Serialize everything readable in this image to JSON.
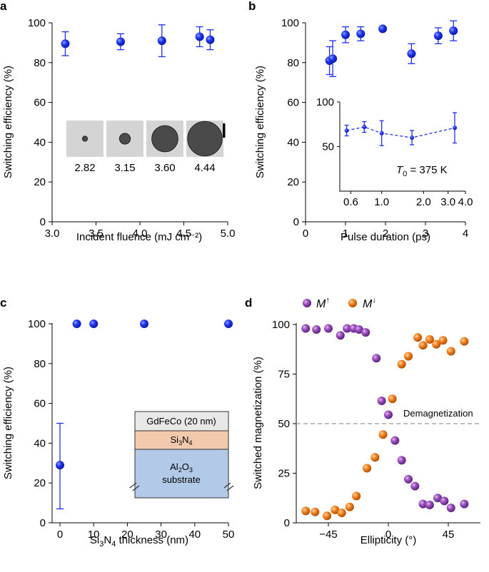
{
  "colors": {
    "blue_fill": "#1f2ff0",
    "blue_line": "#1f2ff0",
    "purple": "#8e44ad",
    "orange": "#f07b1c",
    "gray_line": "#999999",
    "layer_gdfeco": "#e8e8e8",
    "layer_si3n4": "#f2c9ad",
    "layer_al2o3": "#b3c9e8"
  },
  "chart_data": [
    {
      "panel": "a",
      "type": "scatter",
      "xlabel": "Incident fluence (mJ cm⁻²)",
      "ylabel": "Switching efficiency (%)",
      "xlim": [
        3.0,
        5.0
      ],
      "ylim": [
        0,
        100
      ],
      "xticks": [
        "3.0",
        "3.5",
        "4.0",
        "4.5",
        "5.0"
      ],
      "yticks": [
        "0",
        "20",
        "40",
        "60",
        "80",
        "100"
      ],
      "points": [
        {
          "x": 3.15,
          "y": 89.5,
          "err_lo": 6,
          "err_hi": 6
        },
        {
          "x": 3.78,
          "y": 90.5,
          "err_lo": 4,
          "err_hi": 4
        },
        {
          "x": 4.25,
          "y": 91,
          "err_lo": 8,
          "err_hi": 8
        },
        {
          "x": 4.68,
          "y": 93,
          "err_lo": 5,
          "err_hi": 5
        },
        {
          "x": 4.8,
          "y": 91.5,
          "err_lo": 5,
          "err_hi": 5
        }
      ],
      "inset_labels": [
        "2.82",
        "3.15",
        "3.60",
        "4.44"
      ],
      "inset_spot_sizes": [
        0.14,
        0.3,
        0.72,
        0.95
      ]
    },
    {
      "panel": "b",
      "type": "scatter",
      "xlabel": "Pulse duration (ps)",
      "ylabel": "Switching efficiency (%)",
      "xlim": [
        0,
        4
      ],
      "ylim": [
        0,
        100
      ],
      "xticks": [
        "0",
        "1",
        "2",
        "3",
        "4"
      ],
      "yticks": [
        "0",
        "20",
        "40",
        "60",
        "80",
        "100"
      ],
      "points": [
        {
          "x": 0.6,
          "y": 81,
          "err_lo": 7,
          "err_hi": 7
        },
        {
          "x": 0.68,
          "y": 82,
          "err_lo": 9,
          "err_hi": 9
        },
        {
          "x": 1.0,
          "y": 94,
          "err_lo": 4,
          "err_hi": 4
        },
        {
          "x": 1.38,
          "y": 94.5,
          "err_lo": 3.5,
          "err_hi": 3.5
        },
        {
          "x": 1.93,
          "y": 97,
          "err_lo": 0,
          "err_hi": 0
        },
        {
          "x": 2.65,
          "y": 84.5,
          "err_lo": 5,
          "err_hi": 5
        },
        {
          "x": 3.32,
          "y": 93.5,
          "err_lo": 4,
          "err_hi": 4
        },
        {
          "x": 3.7,
          "y": 96,
          "err_lo": 5,
          "err_hi": 5
        }
      ],
      "inset": {
        "annotation_T": "T",
        "annotation_sub": "0",
        "annotation_rest": " = 375 K",
        "xscale": "log",
        "xlim": [
          0.5,
          4.0
        ],
        "ylim": [
          0,
          100
        ],
        "xticks": [
          {
            "v": 0.6,
            "label": "0.6"
          },
          {
            "v": 1.0,
            "label": "1.0"
          },
          {
            "v": 2.0,
            "label": "2.0"
          },
          {
            "v": 3.0,
            "label": "3.0"
          },
          {
            "v": 4.0,
            "label": "4.0"
          }
        ],
        "yticks": [
          "50",
          "100"
        ],
        "points": [
          {
            "x": 0.56,
            "y": 68,
            "err_lo": 6,
            "err_hi": 6
          },
          {
            "x": 0.75,
            "y": 72,
            "err_lo": 6,
            "err_hi": 6
          },
          {
            "x": 1.0,
            "y": 65,
            "err_lo": 14,
            "err_hi": 14
          },
          {
            "x": 1.65,
            "y": 60,
            "err_lo": 8,
            "err_hi": 8
          },
          {
            "x": 3.35,
            "y": 71,
            "err_lo": 17,
            "err_hi": 17
          }
        ]
      }
    },
    {
      "panel": "c",
      "type": "scatter",
      "xlabel_main": "Si",
      "xlabel_sub1": "3",
      "xlabel_mid": "N",
      "xlabel_sub2": "4",
      "xlabel_rest": " thickness (nm)",
      "ylabel": "Switching efficiency (%)",
      "xlim": [
        0,
        50
      ],
      "ylim": [
        0,
        100
      ],
      "xticks": [
        "0",
        "10",
        "20",
        "30",
        "40",
        "50"
      ],
      "yticks": [
        "0",
        "20",
        "40",
        "60",
        "80",
        "100"
      ],
      "points": [
        {
          "x": 0,
          "y": 29,
          "err_lo": 22,
          "err_hi": 21
        },
        {
          "x": 5,
          "y": 100,
          "err_lo": 0,
          "err_hi": 0
        },
        {
          "x": 10,
          "y": 100,
          "err_lo": 0,
          "err_hi": 0
        },
        {
          "x": 25,
          "y": 100,
          "err_lo": 0,
          "err_hi": 0
        },
        {
          "x": 50,
          "y": 100,
          "err_lo": 0,
          "err_hi": 0
        }
      ],
      "stack": {
        "top": "GdFeCo (20 nm)",
        "mid_a": "Si",
        "mid_sub1": "3",
        "mid_b": "N",
        "mid_sub2": "4",
        "bot_a": "Al",
        "bot_sub1": "2",
        "bot_b": "O",
        "bot_sub2": "3",
        "bot_line2": "substrate"
      }
    },
    {
      "panel": "d",
      "type": "scatter",
      "xlabel": "Ellipticity (°)",
      "ylabel": "Switched magnetization (%)",
      "xlim": [
        -65,
        65
      ],
      "ylim": [
        0,
        100
      ],
      "xticks": [
        {
          "v": -45,
          "label": "−45"
        },
        {
          "v": 0,
          "label": "0"
        },
        {
          "v": 45,
          "label": "45"
        }
      ],
      "yticks": [
        "0",
        "25",
        "50",
        "75",
        "100"
      ],
      "reference_line": {
        "y": 50,
        "label": "Demagnetization"
      },
      "legend": [
        {
          "name": "M",
          "sup": "↑"
        },
        {
          "name": "M",
          "sup": "↓"
        }
      ],
      "series": [
        {
          "name": "M up",
          "points": [
            {
              "x": -62,
              "y": 98
            },
            {
              "x": -54,
              "y": 97.5
            },
            {
              "x": -45,
              "y": 98
            },
            {
              "x": -36,
              "y": 94.5
            },
            {
              "x": -31,
              "y": 98
            },
            {
              "x": -26,
              "y": 98
            },
            {
              "x": -22,
              "y": 97.5
            },
            {
              "x": -17,
              "y": 96
            },
            {
              "x": -9,
              "y": 83
            },
            {
              "x": -5,
              "y": 61.5
            },
            {
              "x": 0,
              "y": 54.5
            },
            {
              "x": 5,
              "y": 41.5
            },
            {
              "x": 10,
              "y": 31.5
            },
            {
              "x": 15,
              "y": 22
            },
            {
              "x": 20,
              "y": 18.5
            },
            {
              "x": 26,
              "y": 9.5
            },
            {
              "x": 31,
              "y": 9
            },
            {
              "x": 37,
              "y": 12.5
            },
            {
              "x": 42,
              "y": 11
            },
            {
              "x": 47,
              "y": 7.5
            },
            {
              "x": 57,
              "y": 9.5
            }
          ]
        },
        {
          "name": "M down",
          "points": [
            {
              "x": -62,
              "y": 6
            },
            {
              "x": -55,
              "y": 5.5
            },
            {
              "x": -46,
              "y": 3.5
            },
            {
              "x": -40,
              "y": 6.5
            },
            {
              "x": -35,
              "y": 5
            },
            {
              "x": -29,
              "y": 8
            },
            {
              "x": -24,
              "y": 13.5
            },
            {
              "x": -16,
              "y": 27.5
            },
            {
              "x": -10,
              "y": 33
            },
            {
              "x": -4,
              "y": 44.5
            },
            {
              "x": 3,
              "y": 62.5
            },
            {
              "x": 10,
              "y": 80
            },
            {
              "x": 15,
              "y": 84
            },
            {
              "x": 22,
              "y": 93.5
            },
            {
              "x": 26,
              "y": 89.5
            },
            {
              "x": 31,
              "y": 92.5
            },
            {
              "x": 36,
              "y": 90
            },
            {
              "x": 41,
              "y": 92
            },
            {
              "x": 47,
              "y": 86.5
            },
            {
              "x": 57,
              "y": 91.5
            }
          ]
        }
      ]
    }
  ]
}
